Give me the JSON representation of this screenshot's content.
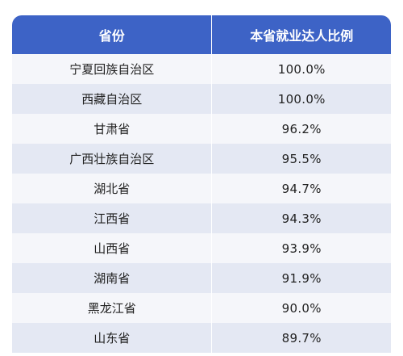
{
  "table": {
    "headers": [
      "省份",
      "本省就业达人比例"
    ],
    "rows": [
      {
        "province": "宁夏回族自治区",
        "ratio": "100.0%"
      },
      {
        "province": "西藏自治区",
        "ratio": "100.0%"
      },
      {
        "province": "甘肃省",
        "ratio": "96.2%"
      },
      {
        "province": "广西壮族自治区",
        "ratio": "95.5%"
      },
      {
        "province": "湖北省",
        "ratio": "94.7%"
      },
      {
        "province": "江西省",
        "ratio": "94.3%"
      },
      {
        "province": "山西省",
        "ratio": "93.9%"
      },
      {
        "province": "湖南省",
        "ratio": "91.9%"
      },
      {
        "province": "黑龙江省",
        "ratio": "90.0%"
      },
      {
        "province": "山东省",
        "ratio": "89.7%"
      }
    ]
  },
  "colors": {
    "header_bg": "#3d63c6",
    "row_alt_bg": "#e4e8f3",
    "row_plain_bg": "#f5f6fa"
  }
}
